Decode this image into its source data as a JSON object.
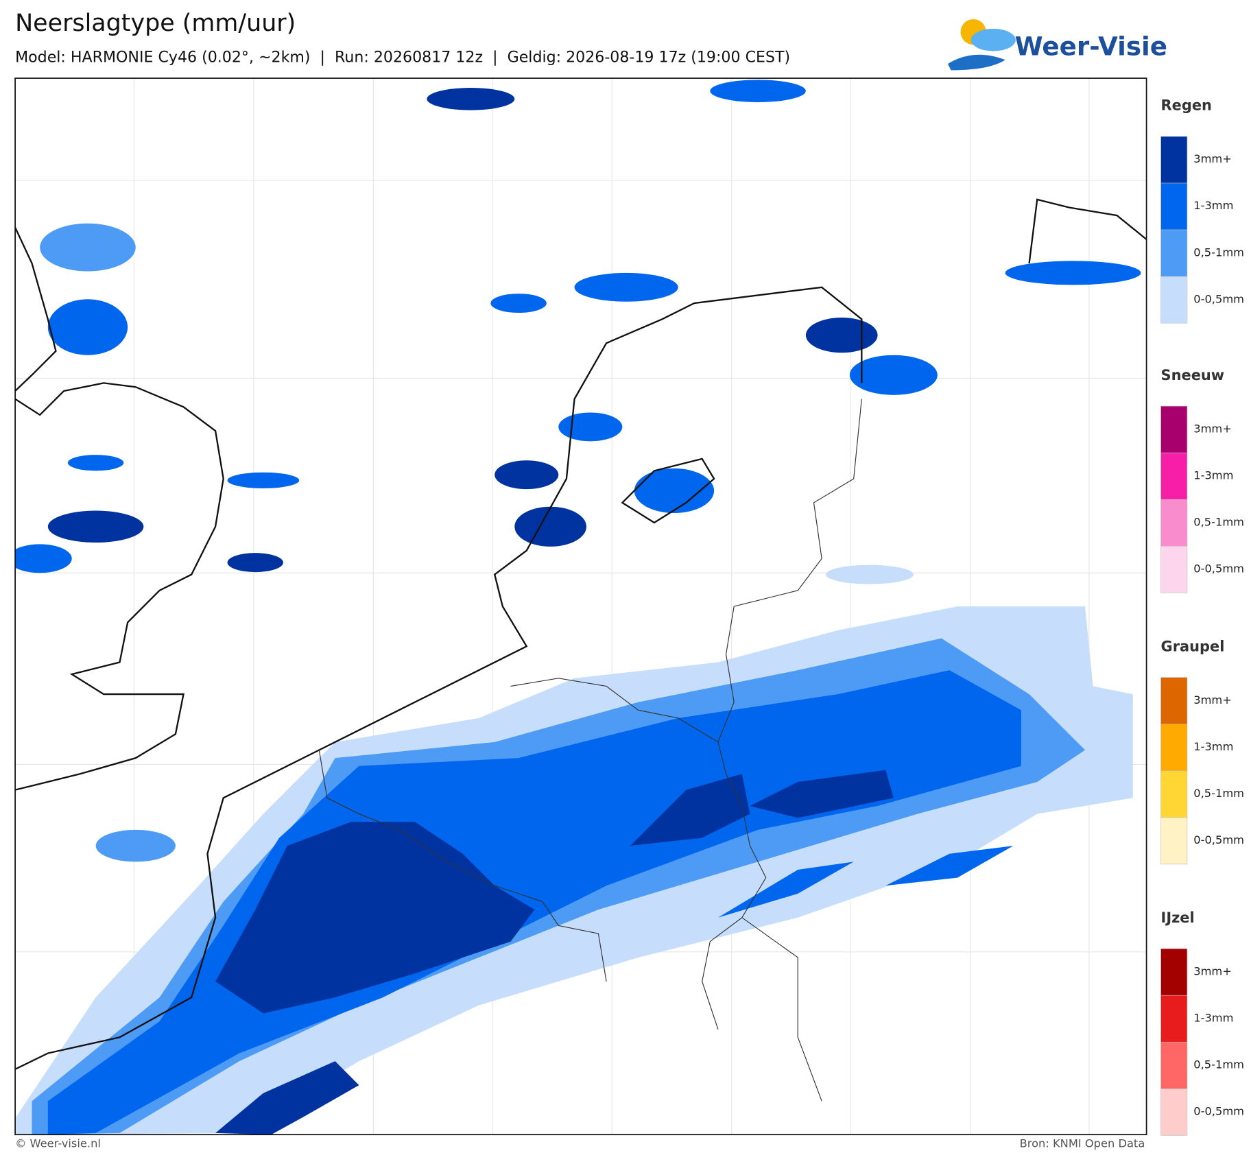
{
  "header": {
    "title": "Neerslagtype (mm/uur)",
    "subtitle": "Model: HARMONIE Cy46 (0.02°, ~2km)  |  Run: 20260817 12z  |  Geldig: 2026-08-19 17z (19:00 CEST)",
    "logo": "Weer-Visie"
  },
  "legend": [
    {
      "title": "Regen",
      "items": [
        {
          "label": "3mm+",
          "color": "#0033a0"
        },
        {
          "label": "1-3mm",
          "color": "#0066ee"
        },
        {
          "label": "0,5-1mm",
          "color": "#4d9bf5"
        },
        {
          "label": "0-0,5mm",
          "color": "#c6defc"
        }
      ]
    },
    {
      "title": "Sneeuw",
      "items": [
        {
          "label": "3mm+",
          "color": "#a8006d"
        },
        {
          "label": "1-3mm",
          "color": "#f71ea8"
        },
        {
          "label": "0,5-1mm",
          "color": "#f98ccc"
        },
        {
          "label": "0-0,5mm",
          "color": "#fdd5ec"
        }
      ]
    },
    {
      "title": "Graupel",
      "items": [
        {
          "label": "3mm+",
          "color": "#dd6600"
        },
        {
          "label": "1-3mm",
          "color": "#ffaa00"
        },
        {
          "label": "0,5-1mm",
          "color": "#ffd633"
        },
        {
          "label": "0-0,5mm",
          "color": "#fff2c4"
        }
      ]
    },
    {
      "title": "IJzel",
      "items": [
        {
          "label": "3mm+",
          "color": "#a30000"
        },
        {
          "label": "1-3mm",
          "color": "#e81c1c"
        },
        {
          "label": "0,5-1mm",
          "color": "#ff6666"
        },
        {
          "label": "0-0,5mm",
          "color": "#ffcccc"
        }
      ]
    }
  ],
  "footer": {
    "left": "© Weer-visie.nl",
    "right": "Bron: KNMI Open Data"
  }
}
